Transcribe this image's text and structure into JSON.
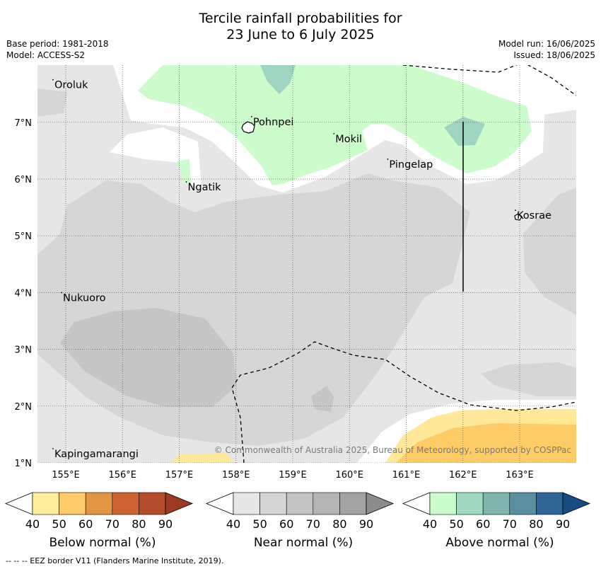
{
  "header": {
    "title_line1": "Tercile rainfall probabilities for",
    "title_line2": "23 June to 6 July 2025",
    "base_period": "Base period: 1981-2018",
    "model": "Model: ACCESS-S2",
    "model_run": "Model run: 16/06/2025",
    "issued": "Issued: 18/06/2025"
  },
  "map": {
    "lon_ticks": [
      "155°E",
      "156°E",
      "157°E",
      "158°E",
      "159°E",
      "160°E",
      "161°E",
      "162°E",
      "163°E"
    ],
    "lat_ticks": [
      "1°N",
      "2°N",
      "3°N",
      "4°N",
      "5°N",
      "6°N",
      "7°N"
    ],
    "places": [
      {
        "name": "Oroluk",
        "lon": 154.8,
        "lat": 7.6
      },
      {
        "name": "Pohnpei",
        "lon": 158.3,
        "lat": 6.95
      },
      {
        "name": "Mokil",
        "lon": 159.75,
        "lat": 6.65
      },
      {
        "name": "Pingelap",
        "lon": 160.7,
        "lat": 6.2
      },
      {
        "name": "Ngatik",
        "lon": 157.15,
        "lat": 5.8
      },
      {
        "name": "Kosrae",
        "lon": 162.95,
        "lat": 5.3
      },
      {
        "name": "Nukuoro",
        "lon": 154.95,
        "lat": 3.85
      },
      {
        "name": "Kapingamarangi",
        "lon": 154.8,
        "lat": 1.1
      }
    ],
    "copyright": "© Commonwealth of Australia 2025, Bureau of Meteorology, supported by COSPPac",
    "colors": {
      "near40": "#e6e6e6",
      "near50": "#d6d6d6",
      "near60": "#c6c6c6",
      "above40": "#ccfccc",
      "above50": "#9fd4c0",
      "below40": "#ffe89a",
      "below50": "#fecc66"
    }
  },
  "colorbars": [
    {
      "id": "below",
      "label": "Below normal (%)",
      "ticks": [
        "40",
        "50",
        "60",
        "70",
        "80",
        "90"
      ],
      "colors": [
        "#ffffff",
        "#ffec9c",
        "#fdcb68",
        "#e39546",
        "#cd6332",
        "#b34c2a",
        "#9e3a24"
      ]
    },
    {
      "id": "near",
      "label": "Near normal (%)",
      "ticks": [
        "40",
        "50",
        "60",
        "70",
        "80",
        "90"
      ],
      "colors": [
        "#ffffff",
        "#e6e6e6",
        "#d5d5d5",
        "#c4c4c4",
        "#b4b4b4",
        "#a3a3a3",
        "#8c8c8c"
      ]
    },
    {
      "id": "above",
      "label": "Above normal (%)",
      "ticks": [
        "40",
        "50",
        "60",
        "70",
        "80",
        "90"
      ],
      "colors": [
        "#ffffff",
        "#cbfccb",
        "#a2d9c2",
        "#7fb5ae",
        "#5a8fa0",
        "#2e6496",
        "#174b82"
      ]
    }
  ],
  "footer": "--  --  -- EEZ border V11 (Flanders Marine Institute, 2019)."
}
